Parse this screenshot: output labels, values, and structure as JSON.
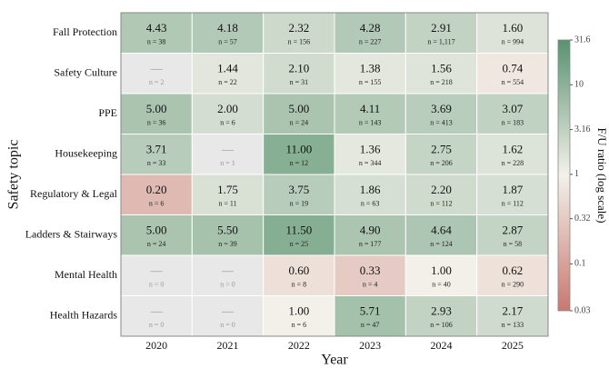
{
  "chart_data": {
    "type": "heatmap",
    "xlabel": "Year",
    "ylabel": "Safety topic",
    "x": [
      "2020",
      "2021",
      "2022",
      "2023",
      "2024",
      "2025"
    ],
    "y": [
      "Fall Protection",
      "Safety Culture",
      "PPE",
      "Housekeeping",
      "Regulatory & Legal",
      "Ladders & Stairways",
      "Mental Health",
      "Health Hazards"
    ],
    "values": [
      [
        4.43,
        4.18,
        2.32,
        4.28,
        2.91,
        1.6
      ],
      [
        null,
        1.44,
        2.1,
        1.38,
        1.56,
        0.74
      ],
      [
        5,
        2,
        5,
        4.11,
        3.69,
        3.07
      ],
      [
        3.71,
        null,
        11,
        1.36,
        2.75,
        1.62
      ],
      [
        0.2,
        1.75,
        3.75,
        1.86,
        2.2,
        1.87
      ],
      [
        5,
        5.5,
        11.5,
        4.9,
        4.64,
        2.87
      ],
      [
        null,
        null,
        0.6,
        0.33,
        1,
        0.62
      ],
      [
        null,
        null,
        1,
        5.71,
        2.93,
        2.17
      ]
    ],
    "value_labels": [
      [
        "4.43",
        "4.18",
        "2.32",
        "4.28",
        "2.91",
        "1.60"
      ],
      [
        "—",
        "1.44",
        "2.10",
        "1.38",
        "1.56",
        "0.74"
      ],
      [
        "5.00",
        "2.00",
        "5.00",
        "4.11",
        "3.69",
        "3.07"
      ],
      [
        "3.71",
        "—",
        "11.00",
        "1.36",
        "2.75",
        "1.62"
      ],
      [
        "0.20",
        "1.75",
        "3.75",
        "1.86",
        "2.20",
        "1.87"
      ],
      [
        "5.00",
        "5.50",
        "11.50",
        "4.90",
        "4.64",
        "2.87"
      ],
      [
        "—",
        "—",
        "0.60",
        "0.33",
        "1.00",
        "0.62"
      ],
      [
        "—",
        "—",
        "1.00",
        "5.71",
        "2.93",
        "2.17"
      ]
    ],
    "n_labels": [
      [
        "n = 38",
        "n = 57",
        "n = 156",
        "n = 227",
        "n = 1,117",
        "n = 994"
      ],
      [
        "n = 2",
        "n = 22",
        "n = 31",
        "n = 155",
        "n = 218",
        "n = 554"
      ],
      [
        "n = 36",
        "n = 6",
        "n = 24",
        "n = 143",
        "n = 413",
        "n = 183"
      ],
      [
        "n = 33",
        "n = 1",
        "n = 12",
        "n = 344",
        "n = 206",
        "n = 228"
      ],
      [
        "n = 6",
        "n = 11",
        "n = 19",
        "n = 63",
        "n = 112",
        "n = 112"
      ],
      [
        "n = 24",
        "n = 39",
        "n = 25",
        "n = 177",
        "n = 124",
        "n = 58"
      ],
      [
        "n = 0",
        "n = 0",
        "n = 8",
        "n = 4",
        "n = 40",
        "n = 290"
      ],
      [
        "n = 0",
        "n = 0",
        "n = 6",
        "n = 47",
        "n = 106",
        "n = 133"
      ]
    ],
    "missing_color": "#e8e8e8",
    "colorbar": {
      "label": "F/U ratio (log scale)",
      "lim": [
        0.03,
        31.6
      ],
      "ticks": [
        31.6,
        10,
        3.16,
        1,
        0.32,
        0.1,
        0.03
      ],
      "log": true,
      "colors": [
        "#c8786f",
        "#f3f1ea",
        "#58926f"
      ]
    }
  }
}
